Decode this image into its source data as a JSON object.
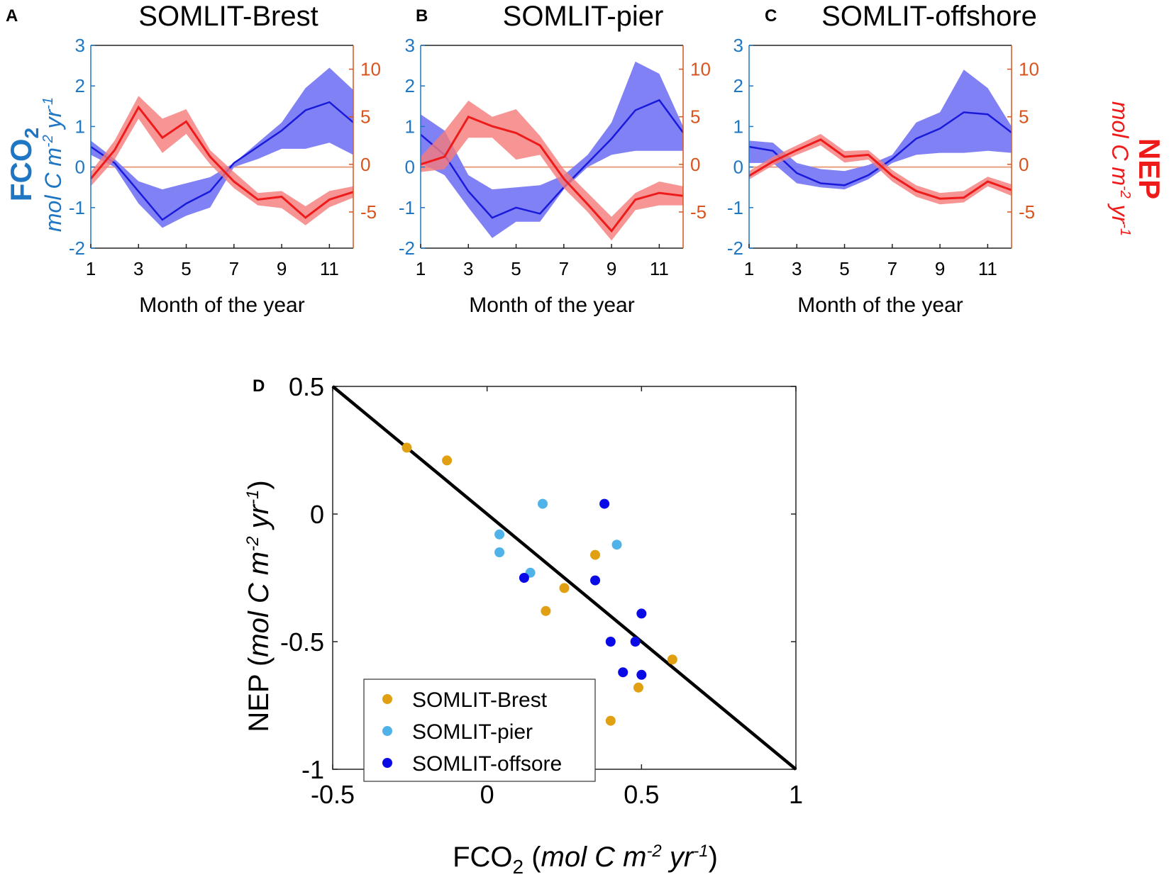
{
  "colors": {
    "fco2_line": "#1a1adb",
    "fco2_band": "#7a7af5",
    "nep_line": "#ee1b1b",
    "nep_band": "#f57a7a",
    "left_axis": "#1f77c4",
    "right_axis": "#d9541e",
    "zero_line": "#e8a080",
    "brest": "#e1a012",
    "pier": "#4fb3ea",
    "offshore": "#0a0ae6"
  },
  "labels": {
    "fco2_main": "FCO",
    "fco2_sub": "2",
    "left_units_main": "mol C m",
    "left_units_sup1": "-2",
    "left_units_mid": " yr",
    "left_units_sup2": "-1",
    "nep_main": "NEP",
    "right_units_main": "mol C m",
    "right_units_sup1": "-2",
    "right_units_mid": " yr",
    "right_units_sup2": "-1"
  },
  "chart_data": [
    {
      "type": "line",
      "panel": "A",
      "title": "SOMLIT-Brest",
      "xlabel": "Month of the year",
      "ylabel_left": "FCO2 mol C m-2 yr-1",
      "ylabel_right": "NEP mol C m-2 yr-1",
      "xlim": [
        1,
        12
      ],
      "ylim_left": [
        -2,
        3
      ],
      "ylim_right": [
        -8.8,
        12.5
      ],
      "xticks": [
        "1",
        "3",
        "5",
        "7",
        "9",
        "11"
      ],
      "yticks_left": [
        "3",
        "2",
        "1",
        "0",
        "-1",
        "-2"
      ],
      "yticks_right": [
        "10",
        "5",
        "0",
        "-5"
      ],
      "x": [
        1,
        2,
        3,
        4,
        5,
        6,
        7,
        8,
        9,
        10,
        11,
        12
      ],
      "series": [
        {
          "name": "FCO2",
          "axis": "left",
          "mean": [
            0.5,
            0.1,
            -0.6,
            -1.3,
            -0.9,
            -0.6,
            0.1,
            0.5,
            0.9,
            1.4,
            1.6,
            1.1
          ],
          "lower": [
            0.3,
            0.0,
            -0.9,
            -1.5,
            -1.2,
            -1.0,
            0.0,
            0.2,
            0.45,
            0.45,
            0.6,
            0.3
          ],
          "upper": [
            0.65,
            0.2,
            -0.35,
            -0.55,
            -0.4,
            -0.25,
            0.1,
            0.6,
            1.1,
            1.95,
            2.45,
            1.9
          ]
        },
        {
          "name": "NEP",
          "axis": "right",
          "mean": [
            -1.5,
            1.5,
            6.0,
            2.8,
            4.5,
            0.8,
            -1.8,
            -3.7,
            -3.4,
            -5.6,
            -3.7,
            -2.9
          ],
          "lower": [
            -2.3,
            0.5,
            4.8,
            1.2,
            3.2,
            0.0,
            -2.5,
            -4.3,
            -4.6,
            -6.4,
            -4.5,
            -3.5
          ],
          "upper": [
            -0.8,
            2.5,
            7.2,
            4.8,
            5.8,
            1.5,
            -0.8,
            -3.0,
            -2.8,
            -4.4,
            -2.8,
            -2.3
          ]
        }
      ]
    },
    {
      "type": "line",
      "panel": "B",
      "title": "SOMLIT-pier",
      "xlabel": "Month of the year",
      "ylabel_left": "FCO2 mol C m-2 yr-1",
      "ylabel_right": "NEP mol C m-2 yr-1",
      "xlim": [
        1,
        12
      ],
      "ylim_left": [
        -2,
        3
      ],
      "ylim_right": [
        -8.8,
        12.5
      ],
      "xticks": [
        "1",
        "3",
        "5",
        "7",
        "9",
        "11"
      ],
      "yticks_left": [
        "3",
        "2",
        "1",
        "0",
        "-1",
        "-2"
      ],
      "yticks_right": [
        "10",
        "5",
        "0",
        "-5"
      ],
      "x": [
        1,
        2,
        3,
        4,
        5,
        6,
        7,
        8,
        9,
        10,
        11,
        12
      ],
      "series": [
        {
          "name": "FCO2",
          "axis": "left",
          "mean": [
            0.8,
            0.3,
            -0.6,
            -1.25,
            -1.0,
            -1.15,
            -0.5,
            0.1,
            0.7,
            1.4,
            1.65,
            0.85
          ],
          "lower": [
            0.1,
            -0.2,
            -1.0,
            -1.75,
            -1.35,
            -1.35,
            -0.55,
            0.0,
            0.3,
            0.4,
            0.4,
            0.4
          ],
          "upper": [
            1.3,
            0.9,
            -0.2,
            -0.55,
            -0.5,
            -0.45,
            -0.2,
            0.3,
            1.1,
            2.6,
            2.3,
            1.0
          ]
        },
        {
          "name": "NEP",
          "axis": "right",
          "mean": [
            0.0,
            0.8,
            5.0,
            4.0,
            3.3,
            2.0,
            -1.5,
            -4.2,
            -7.0,
            -3.7,
            -3.0,
            -3.3
          ],
          "lower": [
            -0.8,
            -0.5,
            2.8,
            2.8,
            0.5,
            1.0,
            -2.5,
            -5.0,
            -8.0,
            -4.8,
            -4.3,
            -4.3
          ],
          "upper": [
            0.8,
            3.5,
            6.7,
            5.0,
            5.8,
            3.0,
            -0.5,
            -3.0,
            -5.5,
            -3.0,
            -1.8,
            -2.3
          ]
        }
      ]
    },
    {
      "type": "line",
      "panel": "C",
      "title": "SOMLIT-offshore",
      "xlabel": "Month of the year",
      "ylabel_left": "FCO2 mol C m-2 yr-1",
      "ylabel_right": "NEP mol C m-2 yr-1",
      "xlim": [
        1,
        12
      ],
      "ylim_left": [
        -2,
        3
      ],
      "ylim_right": [
        -8.8,
        12.5
      ],
      "xticks": [
        "1",
        "3",
        "5",
        "7",
        "9",
        "11"
      ],
      "yticks_left": [
        "3",
        "2",
        "1",
        "0",
        "-1",
        "-2"
      ],
      "yticks_right": [
        "10",
        "5",
        "0",
        "-5"
      ],
      "x": [
        1,
        2,
        3,
        4,
        5,
        6,
        7,
        8,
        9,
        10,
        11,
        12
      ],
      "series": [
        {
          "name": "FCO2",
          "axis": "left",
          "mean": [
            0.5,
            0.4,
            -0.15,
            -0.4,
            -0.45,
            -0.2,
            0.2,
            0.7,
            0.95,
            1.35,
            1.3,
            0.85
          ],
          "lower": [
            0.1,
            0.1,
            -0.4,
            -0.5,
            -0.55,
            -0.3,
            0.1,
            0.3,
            0.35,
            0.35,
            0.4,
            0.35
          ],
          "upper": [
            0.65,
            0.6,
            0.1,
            -0.05,
            -0.1,
            0.05,
            0.3,
            1.1,
            1.35,
            2.4,
            1.95,
            1.0
          ]
        },
        {
          "name": "NEP",
          "axis": "right",
          "mean": [
            -1.2,
            0.3,
            1.5,
            2.6,
            0.8,
            1.0,
            -1.2,
            -2.8,
            -3.6,
            -3.5,
            -1.8,
            -2.7
          ],
          "lower": [
            -1.6,
            -0.1,
            1.0,
            2.0,
            0.2,
            0.5,
            -1.8,
            -3.4,
            -4.2,
            -4.0,
            -2.3,
            -3.3
          ],
          "upper": [
            -0.7,
            0.8,
            2.0,
            3.2,
            1.4,
            1.5,
            -0.6,
            -2.2,
            -3.0,
            -2.8,
            -1.3,
            -2.1
          ]
        }
      ]
    },
    {
      "type": "scatter",
      "panel": "D",
      "title": "",
      "xlabel_main": "FCO",
      "xlabel_sub": "2",
      "xlabel_units": "mol C m-2 yr-1",
      "ylabel_main": "NEP",
      "ylabel_units": "mol C m-2 yr-1",
      "xlim": [
        -0.5,
        1
      ],
      "ylim": [
        -1,
        0.5
      ],
      "xticks": [
        "-0.5",
        "0",
        "0.5",
        "1"
      ],
      "yticks": [
        "0.5",
        "0",
        "-0.5",
        "-1"
      ],
      "legend_position": "bottom-left",
      "reference_line": {
        "x": [
          -0.5,
          1
        ],
        "y": [
          0.5,
          -1
        ]
      },
      "series": [
        {
          "name": "SOMLIT-Brest",
          "points": [
            [
              -0.26,
              0.26
            ],
            [
              -0.13,
              0.21
            ],
            [
              0.35,
              -0.16
            ],
            [
              0.25,
              -0.29
            ],
            [
              0.19,
              -0.38
            ],
            [
              0.6,
              -0.57
            ],
            [
              0.49,
              -0.68
            ],
            [
              0.4,
              -0.81
            ]
          ]
        },
        {
          "name": "SOMLIT-pier",
          "points": [
            [
              0.18,
              0.04
            ],
            [
              0.04,
              -0.08
            ],
            [
              0.04,
              -0.15
            ],
            [
              0.42,
              -0.12
            ],
            [
              0.14,
              -0.23
            ]
          ]
        },
        {
          "name": "SOMLIT-offsore",
          "points": [
            [
              0.38,
              0.04
            ],
            [
              0.12,
              -0.25
            ],
            [
              0.35,
              -0.26
            ],
            [
              0.5,
              -0.39
            ],
            [
              0.4,
              -0.5
            ],
            [
              0.48,
              -0.5
            ],
            [
              0.44,
              -0.62
            ],
            [
              0.5,
              -0.63
            ]
          ]
        }
      ]
    }
  ]
}
